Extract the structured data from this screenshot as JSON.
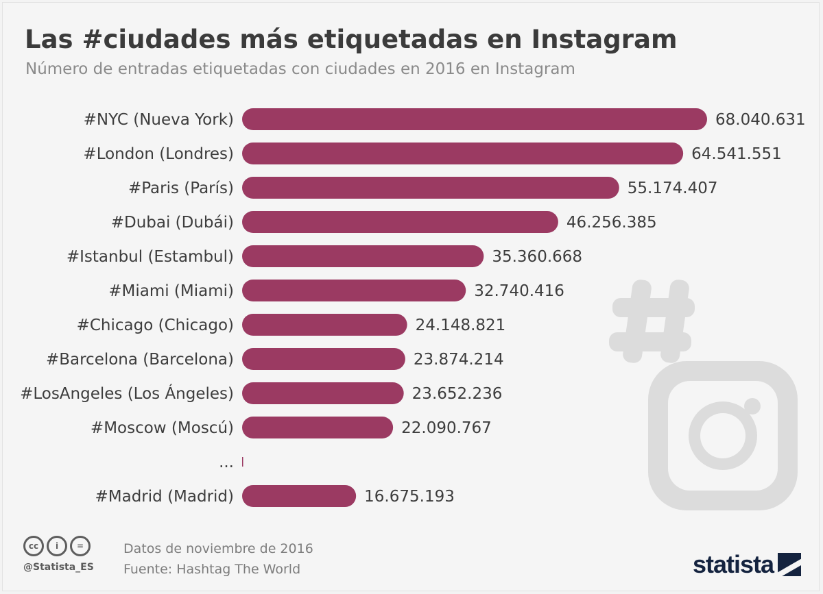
{
  "header": {
    "title": "Las #ciudades más etiquetadas en Instagram",
    "subtitle": "Número de entradas etiquetadas con ciudades en 2016 en Instagram"
  },
  "chart_data": {
    "type": "bar",
    "orientation": "horizontal",
    "title": "Las #ciudades más etiquetadas en Instagram",
    "subtitle": "Número de entradas etiquetadas con ciudades en 2016 en Instagram",
    "categories": [
      "#NYC (Nueva York)",
      "#London (Londres)",
      "#Paris (París)",
      "#Dubai (Dubái)",
      "#Istanbul (Estambul)",
      "#Miami (Miami)",
      "#Chicago (Chicago)",
      "#Barcelona (Barcelona)",
      "#LosAngeles (Los Ángeles)",
      "#Moscow (Moscú)",
      "...",
      "#Madrid (Madrid)"
    ],
    "values": [
      68040631,
      64541551,
      55174407,
      46256385,
      35360668,
      32740416,
      24148821,
      23874214,
      23652236,
      22090767,
      null,
      16675193
    ],
    "value_labels": [
      "68.040.631",
      "64.541.551",
      "55.174.407",
      "46.256.385",
      "35.360.668",
      "32.740.416",
      "24.148.821",
      "23.874.214",
      "23.652.236",
      "22.090.767",
      "",
      "16.675.193"
    ],
    "xlim": [
      0,
      68040631
    ],
    "bar_color": "#9b3a62",
    "grid": false,
    "xlabel": "",
    "ylabel": ""
  },
  "footer": {
    "cc_icons": [
      "cc-icon",
      "by-icon",
      "nd-icon"
    ],
    "cc_glyphs": [
      "cc",
      "i",
      "="
    ],
    "handle": "@Statista_ES",
    "note_date": "Datos de noviembre de 2016",
    "note_source": "Fuente: Hashtag The World",
    "brand": "statista"
  },
  "colors": {
    "bar": "#9b3a62",
    "title": "#3b3b3b",
    "subtitle": "#8a8a8a",
    "watermark": "#dcdcdc",
    "brand": "#14233f"
  }
}
